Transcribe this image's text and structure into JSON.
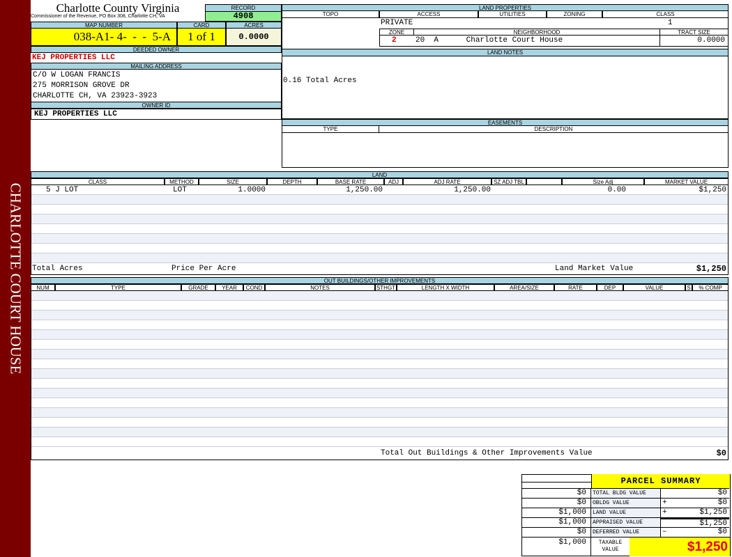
{
  "sidebar": {
    "text": "CHARLOTTE COURT HOUSE",
    "color": "#7a0000"
  },
  "header": {
    "title": "Charlotte County Virginia",
    "subtitle": "Commissioner of the Revenue, PO Box 308, Charlotte CH, VA",
    "record_label": "RECORD",
    "record": "4908"
  },
  "parcel": {
    "map_label": "MAP NUMBER",
    "map_number": "038-A1- 4-  -  -  5-A",
    "card_label": "CARD",
    "card": "1 of 1",
    "acres_label": "ACRES",
    "acres": "0.0000"
  },
  "owner": {
    "deeded_label": "DEEDED OWNER",
    "deeded": "KEJ PROPERTIES LLC",
    "mailing_label": "MAILING ADDRESS",
    "mailing": [
      "C/O W LOGAN FRANCIS",
      "275 MORRISON GROVE DR",
      "CHARLOTTE CH, VA 23923-3923"
    ],
    "id_label": "OWNER ID",
    "id": "KEJ PROPERTIES LLC"
  },
  "land_properties": {
    "label": "LAND PROPERTIES",
    "columns": [
      "TOPO",
      "ACCESS",
      "UTILITIES",
      "ZONING",
      "CLASS"
    ],
    "access": "PRIVATE",
    "class": "1",
    "zone_label": "ZONE",
    "neighborhood_label": "NEIGHBORHOOD",
    "tract_label": "TRACT SIZE",
    "zone": "2",
    "neighborhood": "20  A      Charlotte Court House",
    "tract": "0.0000"
  },
  "land_notes": {
    "label": "LAND NOTES",
    "text": "0.16 Total Acres"
  },
  "easements": {
    "label": "EASEMENTS",
    "columns": [
      "TYPE",
      "DESCRIPTION"
    ]
  },
  "land": {
    "label": "LAND",
    "columns": [
      "CLASS",
      "METHOD",
      "SIZE",
      "DEPTH",
      "BASE RATE",
      "ADJ",
      "ADJ RATE",
      "SZ ADJ TBL",
      "",
      "Size Adj",
      "MARKET VALUE"
    ],
    "rows": [
      {
        "class": "5 J LOT",
        "method": "LOT",
        "size": "1.0000",
        "base_rate": "1,250.00",
        "adj_rate": "1,250.00",
        "size_adj": "0.00",
        "market": "$1,250"
      }
    ],
    "total_acres_label": "Total Acres",
    "price_label": "Price Per Acre",
    "market_label": "Land Market Value",
    "market_total": "$1,250"
  },
  "outbuildings": {
    "label": "OUT BUILDINGS/OTHER IMPROVEMENTS",
    "columns": [
      "NUM",
      "TYPE",
      "GRADE",
      "YEAR",
      "COND",
      "NOTES",
      "STHGT",
      "LENGTH X WIDTH",
      "AREA/SIZE",
      "RATE",
      "DEP",
      "VALUE",
      "S",
      "% COMP"
    ],
    "total_label": "Total Out Buildings & Other Improvements Value",
    "total": "$0"
  },
  "summary": {
    "title": "PARCEL SUMMARY",
    "rows": [
      {
        "prior": "$0",
        "label": "TOTAL BLDG VALUE",
        "op": "",
        "value": "$0"
      },
      {
        "prior": "$0",
        "label": "OBLDG VALUE",
        "op": "+",
        "value": "$0"
      },
      {
        "prior": "$1,000",
        "label": "LAND VALUE",
        "op": "+",
        "value": "$1,250"
      },
      {
        "prior": "$1,000",
        "label": "APPRAISED VALUE",
        "op": "",
        "value": "$1,250"
      },
      {
        "prior": "$0",
        "label": "DEFERRED VALUE",
        "op": "–",
        "value": "$0"
      }
    ],
    "taxable_prior": "$1,000",
    "taxable_label": "TAXABLE VALUE",
    "taxable": "$1,250"
  },
  "colors": {
    "header_bg": "#a9d4e2",
    "yellow": "#ffff00",
    "green": "#90ee90",
    "red": "#cc0000"
  }
}
